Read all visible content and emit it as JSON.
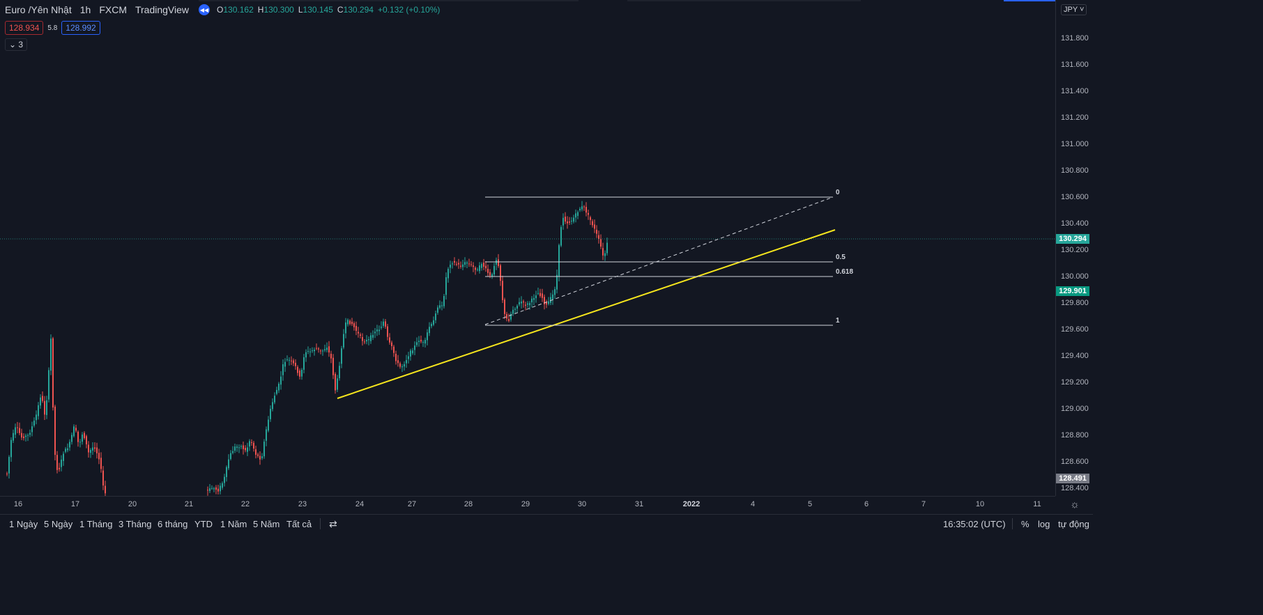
{
  "legend": {
    "symbol": "Euro /Yên Nhật",
    "interval": "1h",
    "exchange": "FXCM",
    "source": "TradingView",
    "back_icon": "rewind-icon",
    "open_label": "O",
    "open": "130.162",
    "high_label": "H",
    "high": "130.300",
    "low_label": "L",
    "low": "130.145",
    "close_label": "C",
    "close": "130.294",
    "change": "+0.132 (+0.10%)"
  },
  "quote": {
    "sell": "128.934",
    "spread": "5.8",
    "buy": "128.992"
  },
  "collapse": {
    "icon": "chevron-down-icon",
    "count": "3"
  },
  "price_axis": {
    "currency": "JPY",
    "ticks": [
      "131.800",
      "131.600",
      "131.400",
      "131.200",
      "131.000",
      "130.800",
      "130.600",
      "130.400",
      "130.200",
      "130.000",
      "129.800",
      "129.600",
      "129.400",
      "129.200",
      "129.000",
      "128.800",
      "128.600",
      "128.400"
    ],
    "last_price": "130.294",
    "tag_mid": "129.901",
    "tag_low": "128.491"
  },
  "time_axis": {
    "ticks": [
      {
        "label": "16",
        "bold": false
      },
      {
        "label": "17",
        "bold": false
      },
      {
        "label": "20",
        "bold": false
      },
      {
        "label": "21",
        "bold": false
      },
      {
        "label": "22",
        "bold": false
      },
      {
        "label": "23",
        "bold": false
      },
      {
        "label": "24",
        "bold": false
      },
      {
        "label": "27",
        "bold": false
      },
      {
        "label": "28",
        "bold": false
      },
      {
        "label": "29",
        "bold": false
      },
      {
        "label": "30",
        "bold": false
      },
      {
        "label": "31",
        "bold": false
      },
      {
        "label": "2022",
        "bold": true
      },
      {
        "label": "4",
        "bold": false
      },
      {
        "label": "5",
        "bold": false
      },
      {
        "label": "6",
        "bold": false
      },
      {
        "label": "7",
        "bold": false
      },
      {
        "label": "10",
        "bold": false
      },
      {
        "label": "11",
        "bold": false
      }
    ],
    "settings_icon": "gear-icon"
  },
  "fib": {
    "levels": [
      "0",
      "0.5",
      "0.618",
      "1"
    ]
  },
  "bottom_bar": {
    "ranges": [
      "1 Ngày",
      "5 Ngày",
      "1 Tháng",
      "3 Tháng",
      "6 tháng",
      "YTD",
      "1 Năm",
      "5 Năm",
      "Tất cả"
    ],
    "calendar_icon": "calendar-goto-icon",
    "clock": "16:35:02 (UTC)",
    "percent": "%",
    "log": "log",
    "auto": "tự động"
  },
  "colors": {
    "background": "#131722",
    "up": "#26a69a",
    "down": "#ef5350",
    "trendline": "#f5e51d",
    "fib": "#d1d4dc"
  }
}
